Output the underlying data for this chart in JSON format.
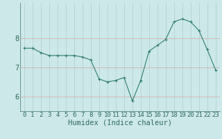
{
  "xlabel": "Humidex (Indice chaleur)",
  "x": [
    0,
    1,
    2,
    3,
    4,
    5,
    6,
    7,
    8,
    9,
    10,
    11,
    12,
    13,
    14,
    15,
    16,
    17,
    18,
    19,
    20,
    21,
    22,
    23
  ],
  "y": [
    7.65,
    7.65,
    7.5,
    7.4,
    7.4,
    7.4,
    7.4,
    7.35,
    7.25,
    6.6,
    6.5,
    6.55,
    6.65,
    5.85,
    6.55,
    7.55,
    7.75,
    7.95,
    8.55,
    8.65,
    8.55,
    8.25,
    7.6,
    6.9
  ],
  "line_color": "#2e7d6e",
  "marker_size": 2.5,
  "bg_color": "#cce8e8",
  "grid_color": "#b8d4d4",
  "ylim": [
    5.5,
    9.2
  ],
  "yticks": [
    6,
    7,
    8
  ],
  "xlim": [
    -0.5,
    23.5
  ],
  "xticks": [
    0,
    1,
    2,
    3,
    4,
    5,
    6,
    7,
    8,
    9,
    10,
    11,
    12,
    13,
    14,
    15,
    16,
    17,
    18,
    19,
    20,
    21,
    22,
    23
  ],
  "xlabel_fontsize": 7.5,
  "tick_fontsize": 6.5,
  "label_color": "#2e6b5e",
  "spine_color": "#5a8a80"
}
